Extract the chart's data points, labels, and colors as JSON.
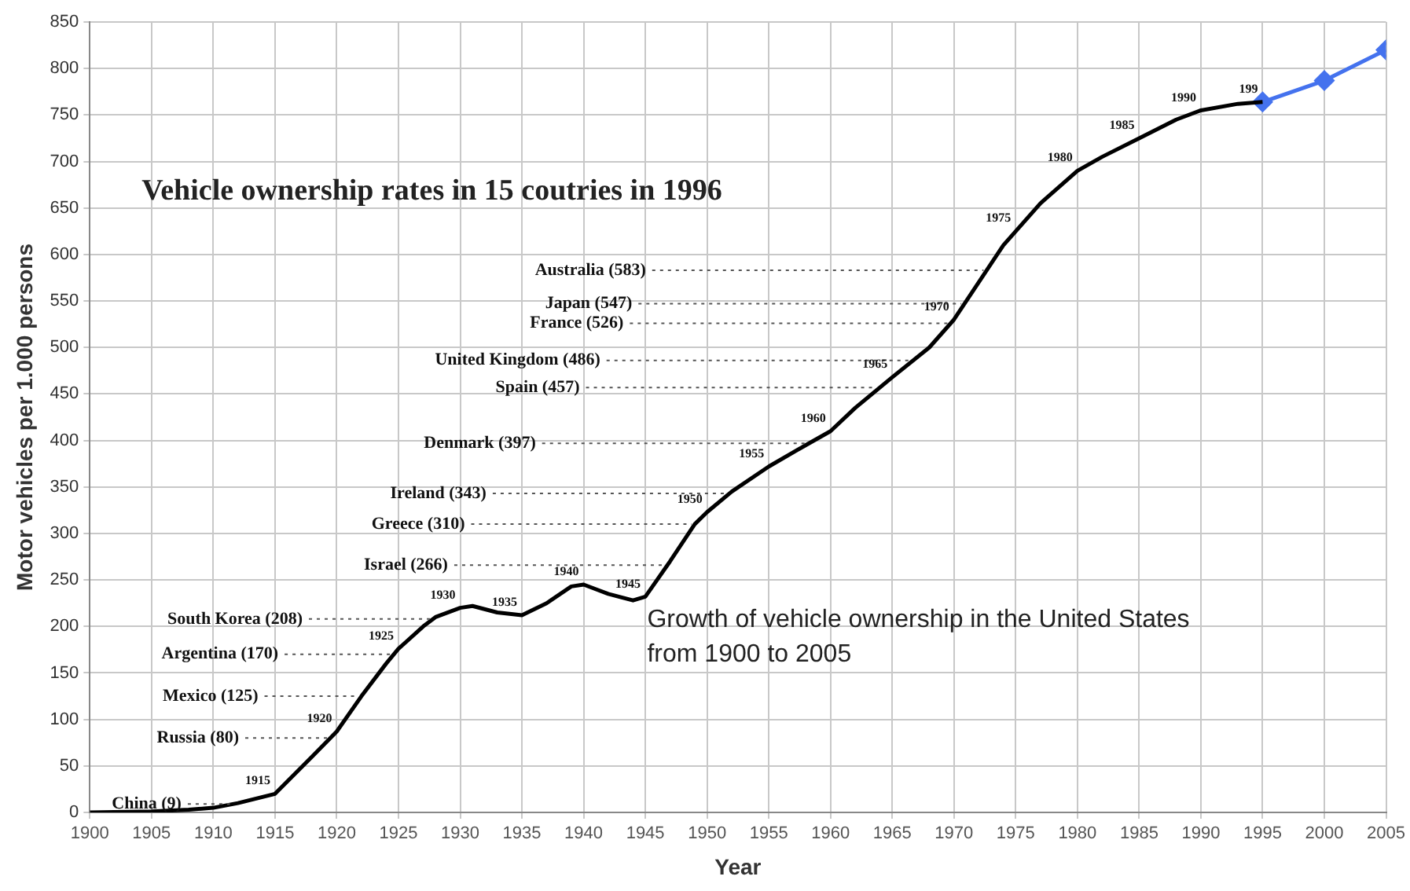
{
  "chart_data": {
    "type": "line",
    "title": "Vehicle ownership rates in 15 coutries in 1996",
    "xlabel": "Year",
    "ylabel": "Motor vehicles per 1.000 persons",
    "xlim": [
      1900,
      2005
    ],
    "xticks": [
      1900,
      1905,
      1910,
      1915,
      1920,
      1925,
      1930,
      1935,
      1940,
      1945,
      1950,
      1955,
      1960,
      1965,
      1970,
      1975,
      1980,
      1985,
      1990,
      1995,
      2000,
      2005
    ],
    "ylim": [
      0,
      850
    ],
    "yticks": [
      0,
      50,
      100,
      150,
      200,
      250,
      300,
      350,
      400,
      450,
      500,
      550,
      600,
      650,
      700,
      750,
      800,
      850
    ],
    "grid": true,
    "legend": false,
    "series": [
      {
        "color": "#000000",
        "marker": "none",
        "x": [
          1900,
          1905,
          1908,
          1910,
          1912,
          1915,
          1918,
          1920,
          1922,
          1924,
          1925,
          1927,
          1928,
          1930,
          1931,
          1933,
          1935,
          1937,
          1939,
          1940,
          1942,
          1944,
          1945,
          1947,
          1949,
          1950,
          1952,
          1955,
          1958,
          1960,
          1962,
          1965,
          1968,
          1970,
          1972,
          1974,
          1975,
          1977,
          1980,
          1982,
          1985,
          1988,
          1990,
          1993,
          1995
        ],
        "values": [
          0,
          1,
          3,
          5,
          10,
          20,
          60,
          87,
          125,
          160,
          176,
          200,
          210,
          220,
          222,
          215,
          212,
          225,
          243,
          245,
          235,
          228,
          232,
          270,
          310,
          323,
          345,
          372,
          395,
          410,
          435,
          468,
          500,
          530,
          570,
          610,
          625,
          655,
          690,
          705,
          725,
          745,
          755,
          762,
          764
        ]
      },
      {
        "color": "#4472ee",
        "marker": "diamond",
        "x": [
          1995,
          2000,
          2005
        ],
        "values": [
          764,
          787,
          820
        ]
      }
    ],
    "ref_lines": [
      {
        "axis": "y",
        "value": 583,
        "label": "Australia (583)",
        "line_style": "dotted"
      },
      {
        "axis": "y",
        "value": 547,
        "label": "Japan (547)",
        "line_style": "dotted"
      },
      {
        "axis": "y",
        "value": 526,
        "label": "France (526)",
        "line_style": "dotted"
      },
      {
        "axis": "y",
        "value": 486,
        "label": "United Kingdom (486)",
        "line_style": "dotted"
      },
      {
        "axis": "y",
        "value": 457,
        "label": "Spain (457)",
        "line_style": "dotted"
      },
      {
        "axis": "y",
        "value": 397,
        "label": "Denmark (397)",
        "line_style": "dotted"
      },
      {
        "axis": "y",
        "value": 343,
        "label": "Ireland (343)",
        "line_style": "dotted"
      },
      {
        "axis": "y",
        "value": 310,
        "label": "Greece (310)",
        "line_style": "dotted"
      },
      {
        "axis": "y",
        "value": 266,
        "label": "Israel (266)",
        "line_style": "dotted"
      },
      {
        "axis": "y",
        "value": 208,
        "label": "South Korea (208)",
        "line_style": "dotted"
      },
      {
        "axis": "y",
        "value": 170,
        "label": "Argentina (170)",
        "line_style": "dotted"
      },
      {
        "axis": "y",
        "value": 125,
        "label": "Mexico (125)",
        "line_style": "dotted"
      },
      {
        "axis": "y",
        "value": 80,
        "label": "Russia (80)",
        "line_style": "dotted"
      },
      {
        "axis": "y",
        "value": 9,
        "label": "China (9)",
        "line_style": "dotted"
      }
    ],
    "annotations": [
      {
        "text": "1915",
        "x": 1915,
        "y": 20
      },
      {
        "text": "1920",
        "x": 1920,
        "y": 87
      },
      {
        "text": "1925",
        "x": 1925,
        "y": 176
      },
      {
        "text": "1930",
        "x": 1930,
        "y": 220
      },
      {
        "text": "1935",
        "x": 1935,
        "y": 212
      },
      {
        "text": "1940",
        "x": 1940,
        "y": 245
      },
      {
        "text": "1945",
        "x": 1945,
        "y": 232
      },
      {
        "text": "1950",
        "x": 1950,
        "y": 323
      },
      {
        "text": "1955",
        "x": 1955,
        "y": 372
      },
      {
        "text": "1960",
        "x": 1960,
        "y": 410
      },
      {
        "text": "1965",
        "x": 1965,
        "y": 468
      },
      {
        "text": "1970",
        "x": 1970,
        "y": 530
      },
      {
        "text": "1975",
        "x": 1975,
        "y": 625
      },
      {
        "text": "1980",
        "x": 1980,
        "y": 690
      },
      {
        "text": "1985",
        "x": 1985,
        "y": 725
      },
      {
        "text": "1990",
        "x": 1990,
        "y": 755
      },
      {
        "text": "199",
        "x": 1995,
        "y": 764
      },
      "Growth of vehicle ownership in the United States from 1900 to 2005"
    ]
  }
}
